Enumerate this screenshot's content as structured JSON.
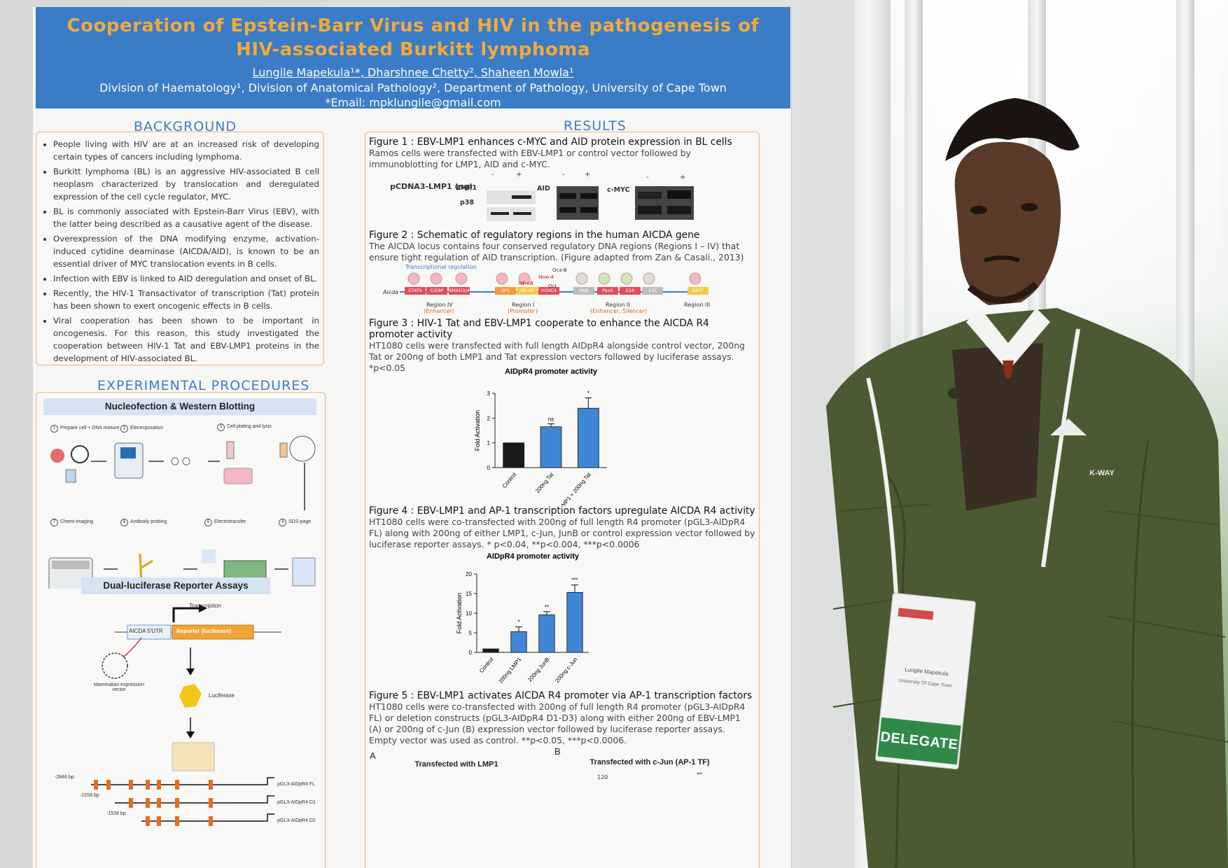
{
  "poster": {
    "title_line1": "Cooperation of Epstein-Barr Virus and HIV in the pathogenesis of",
    "title_line2": "HIV-associated Burkitt lymphoma",
    "authors": "Lungile Mapekula¹*, Dharshnee Chetty², Shaheen Mowla¹",
    "affiliations": "Division of Haematology¹, Division of Anatomical Pathology², Department of Pathology, University of Cape Town",
    "email": "*Email: mpklungile@gmail.com",
    "background": {
      "heading": "BACKGROUND",
      "bullets": [
        "People living with HIV are at an increased risk of developing certain types of cancers including lymphoma.",
        "Burkitt lymphoma (BL) is an aggressive HIV-associated B cell neoplasm characterized by translocation and deregulated expression of the cell cycle regulator, MYC.",
        "BL is commonly associated with Epstein-Barr Virus (EBV), with the latter being described as a causative agent of the disease.",
        "Overexpression of the DNA modifying enzyme, activation-induced cytidine deaminase (AICDA/AID), is known to be an essential driver of MYC translocation events in B cells.",
        "Infection with EBV is linked to AID deregulation and onset of BL.",
        "Recently, the HIV-1 Transactivator of transcription (Tat) protein has been shown to exert oncogenic effects in B cells.",
        "Viral cooperation has been shown to be important in oncogenesis. For this reason, this study investigated the cooperation between HIV-1 Tat and EBV-LMP1 proteins in the development of HIV-associated BL."
      ]
    },
    "procedures": {
      "heading": "EXPERIMENTAL PROCEDURES",
      "nucleofection_title": "Nucleofection & Western Blotting",
      "steps": [
        {
          "num": "1",
          "label": "Prepare cell + DNA mixture"
        },
        {
          "num": "2",
          "label": "Electroporation"
        },
        {
          "num": "3",
          "label": "Cell plating and lysis"
        },
        {
          "num": "4",
          "label": "SDS-page"
        },
        {
          "num": "5",
          "label": "Electrotransfer"
        },
        {
          "num": "6",
          "label": "Antibody probing"
        },
        {
          "num": "7",
          "label": "Chemi-imaging"
        }
      ],
      "luciferase_title": "Dual-luciferase Reporter Assays",
      "transcription_label": "Transcription",
      "utr_label": "AICDA 5'UTR",
      "reporter_label": "Reporter (luciferase)",
      "vector_label": "Mammalian expression vector",
      "luciferase_label": "Luciferase",
      "constructs": [
        {
          "bp": "-2846 bp",
          "name": "pGL3-AIDpR4 FL"
        },
        {
          "bp": "-2259 bp",
          "name": "pGL3-AIDpR4 D1"
        },
        {
          "bp": "-1539 bp",
          "name": "pGL3-AIDpR4 D2"
        }
      ]
    },
    "results": {
      "heading": "RESULTS",
      "fig1_title": "Figure 1 : EBV-LMP1 enhances c-MYC and  AID protein expression in BL cells",
      "fig1_desc": "Ramos cells were transfected with EBV-LMP1 or control vector followed by immunoblotting for LMP1, AID and c-MYC.",
      "fig1_blot_row": "pCDNA3-LMP1 (ng)",
      "fig1_blot_labels": [
        "LMP1",
        "p38",
        "AID",
        "c-MYC"
      ],
      "fig1_lanes": [
        "-",
        "+"
      ],
      "fig2_title": "Figure 2 : Schematic of regulatory regions in the human AICDA gene",
      "fig2_desc": "The AICDA locus contains four conserved regulatory DNA regions (Regions I – IV) that ensure tight regulation of AID transcription. (Figure adapted from Zan & Casali., 2013)",
      "fig2_trans_label": "Transcriptional regulation",
      "fig2_gene": "Aicda",
      "fig2_factors": [
        "STAT6",
        "C/EBP",
        "SMAD3/4",
        "SP1",
        "NF-κB",
        "HOXC4",
        "Myb",
        "Pax5",
        "E2A",
        "E2f",
        "BATF"
      ],
      "fig2_regions": [
        "Region IV",
        "(Enhancer)",
        "Region I",
        "(Promoter)",
        "Region II",
        "(Enhancer, Silencer)",
        "Region III"
      ],
      "fig2_bubbles": [
        "NF-κB",
        "Hoxc4",
        "Oct",
        "Oca-B"
      ],
      "fig3_title": "Figure 3 : HIV-1 Tat and EBV-LMP1 cooperate to enhance the AICDA R4 promoter activity",
      "fig3_desc": "HT1080 cells were transfected with full length AIDpR4 alongside control vector, 200ng Tat or 200ng of both LMP1 and Tat expression vectors followed by luciferase assays. *p<0.05",
      "fig4_title": "Figure 4 : EBV-LMP1 and AP-1 transcription factors upregulate AICDA R4 activity",
      "fig4_desc": "HT1080 cells were co-transfected with 200ng of full length R4 promoter (pGL3-AIDpR4 FL) along with 200ng of either LMP1, c-Jun, JunB or control expression vector followed by luciferase reporter assays. * p<0.04, **p<0.004, ***p<0.0006",
      "fig5_title": "Figure 5 : EBV-LMP1 activates AICDA R4 promoter via AP-1 transcription factors",
      "fig5_desc": "HT1080 cells were co-transfected with 200ng of full length R4 promoter (pGL3-AIDpR4 FL) or deletion constructs (pGL3-AIDpR4 D1-D3) along with either 200ng of EBV-LMP1 (A) or 200ng of c-Jun (B) expression vector followed by luciferase reporter assays. Empty vector was used as control. **p<0.05, ***p<0.0006.",
      "fig5_panel_a": "A",
      "fig5_panel_b": "B",
      "fig5_a_title": "Transfected with LMP1",
      "fig5_b_title": "Transfected with c-Jun (AP-1 TF)",
      "fig5_b_tick": "120",
      "fig5_b_sig": "**"
    }
  },
  "chart_data": [
    {
      "type": "bar",
      "title": "AIDpR4 promoter activity",
      "ylabel": "Fold Activation",
      "xlabel": "",
      "categories": [
        "Control",
        "200ng Tat",
        "200ng LMP1 + 200ng Tat"
      ],
      "values": [
        1.0,
        1.65,
        2.4
      ],
      "errors": [
        0,
        0.12,
        0.42
      ],
      "significance": [
        "",
        "ns",
        "*"
      ],
      "colors": [
        "#1a1a1a",
        "#3f86d6",
        "#3f86d6"
      ],
      "ylim": [
        0,
        3
      ],
      "yticks": [
        0,
        1,
        2,
        3
      ],
      "grid": false
    },
    {
      "type": "bar",
      "title": "AIDpR4  promoter activity",
      "ylabel": "Fold Activation",
      "xlabel": "",
      "categories": [
        "Control",
        "200ng LMP1",
        "200ng JunB",
        "200ng c-Jun"
      ],
      "values": [
        0.9,
        5.3,
        9.6,
        15.3
      ],
      "errors": [
        0,
        1.2,
        0.8,
        1.9
      ],
      "significance": [
        "",
        "*",
        "**",
        "***"
      ],
      "colors": [
        "#1a1a1a",
        "#3f86d6",
        "#3f86d6",
        "#3f86d6"
      ],
      "ylim": [
        0,
        20
      ],
      "yticks": [
        0,
        5,
        10,
        15,
        20
      ],
      "grid": false
    }
  ],
  "person": {
    "badge_name": "Lungile Mapekula",
    "badge_org": "University Of Cape Town",
    "badge_role": "DELEGATE",
    "jacket_logo": "K-WAY"
  },
  "colors": {
    "banner_blue": "#3b7cc7",
    "title_orange": "#f2a93b",
    "section_blue": "#3b7cc7",
    "box_border": "#f0b47a",
    "bar_blue": "#3f86d6",
    "jacket_green": "#4b5a32"
  }
}
